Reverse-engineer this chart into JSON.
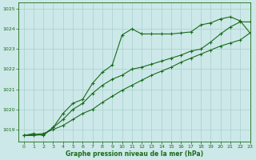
{
  "title": "Graphe pression niveau de la mer (hPa)",
  "background_color": "#cce8e8",
  "grid_color": "#aacfcf",
  "line_color": "#1a6b1a",
  "xlim": [
    -0.5,
    23
  ],
  "ylim": [
    1018.4,
    1025.3
  ],
  "yticks": [
    1019,
    1020,
    1021,
    1022,
    1023,
    1024,
    1025
  ],
  "xticks": [
    0,
    1,
    2,
    3,
    4,
    5,
    6,
    7,
    8,
    9,
    10,
    11,
    12,
    13,
    14,
    15,
    16,
    17,
    18,
    19,
    20,
    21,
    22,
    23
  ],
  "series1_x": [
    0,
    1,
    2,
    3,
    4,
    5,
    6,
    7,
    8,
    9,
    10,
    11,
    12,
    13,
    14,
    15,
    16,
    17,
    18,
    19,
    20,
    21,
    22,
    23
  ],
  "series1_y": [
    1018.7,
    1018.8,
    1018.7,
    1019.1,
    1019.8,
    1020.3,
    1020.5,
    1021.3,
    1021.85,
    1022.2,
    1023.7,
    1024.0,
    1023.75,
    1023.75,
    1023.75,
    1023.75,
    1023.8,
    1023.85,
    1024.2,
    1024.3,
    1024.5,
    1024.6,
    1024.4,
    1023.8
  ],
  "series2_x": [
    0,
    1,
    2,
    3,
    4,
    5,
    6,
    7,
    8,
    9,
    10,
    11,
    12,
    13,
    14,
    15,
    16,
    17,
    18,
    19,
    20,
    21,
    22,
    23
  ],
  "series2_y": [
    1018.7,
    1018.7,
    1018.75,
    1019.1,
    1019.5,
    1020.0,
    1020.3,
    1020.8,
    1021.2,
    1021.5,
    1021.7,
    1022.0,
    1022.1,
    1022.25,
    1022.4,
    1022.55,
    1022.7,
    1022.9,
    1023.0,
    1023.35,
    1023.75,
    1024.1,
    1024.35,
    1024.35
  ],
  "series3_x": [
    0,
    1,
    2,
    3,
    4,
    5,
    6,
    7,
    8,
    9,
    10,
    11,
    12,
    13,
    14,
    15,
    16,
    17,
    18,
    19,
    20,
    21,
    22,
    23
  ],
  "series3_y": [
    1018.7,
    1018.75,
    1018.8,
    1019.0,
    1019.2,
    1019.5,
    1019.8,
    1020.0,
    1020.35,
    1020.65,
    1020.95,
    1021.2,
    1021.45,
    1021.7,
    1021.9,
    1022.1,
    1022.35,
    1022.55,
    1022.75,
    1022.95,
    1023.15,
    1023.3,
    1023.45,
    1023.8
  ]
}
